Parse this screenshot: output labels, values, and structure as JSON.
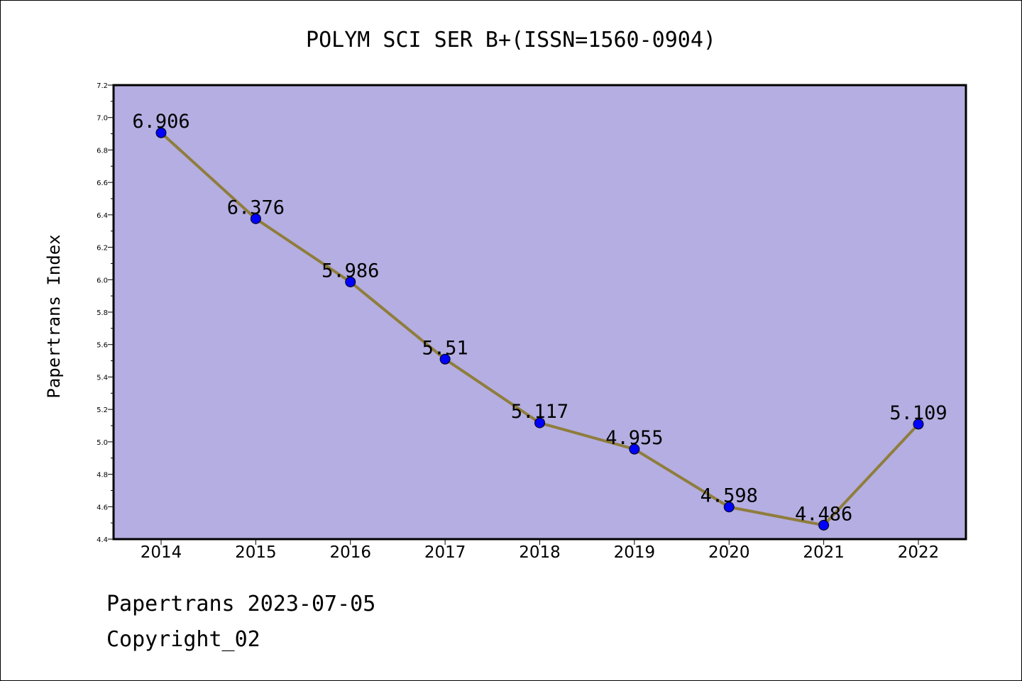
{
  "chart_data": {
    "type": "line",
    "title": "POLYM SCI SER B+(ISSN=1560-0904)",
    "ylabel": "Papertrans Index",
    "xlabel": "",
    "categories": [
      "2014",
      "2015",
      "2016",
      "2017",
      "2018",
      "2019",
      "2020",
      "2021",
      "2022"
    ],
    "values": [
      6.906,
      6.376,
      5.986,
      5.51,
      5.117,
      4.955,
      4.598,
      4.486,
      5.109
    ],
    "data_labels": [
      "6.906",
      "6.376",
      "5.986",
      "5.51",
      "5.117",
      "4.955",
      "4.598",
      "4.486",
      "5.109"
    ],
    "ylim": [
      4.4,
      7.2
    ],
    "yticks": [
      "4.4",
      "4.6",
      "4.8",
      "5.0",
      "5.2",
      "5.4",
      "5.6",
      "5.8",
      "6.0",
      "6.2",
      "6.4",
      "6.6",
      "6.8",
      "7.0",
      "7.2"
    ],
    "grid": false,
    "colors": {
      "plot_background": "#b4aee2",
      "line": "#8f7d3c",
      "marker": "#0000ff"
    }
  },
  "footer": {
    "line1": "Papertrans 2023-07-05",
    "line2": "Copyright_02"
  }
}
